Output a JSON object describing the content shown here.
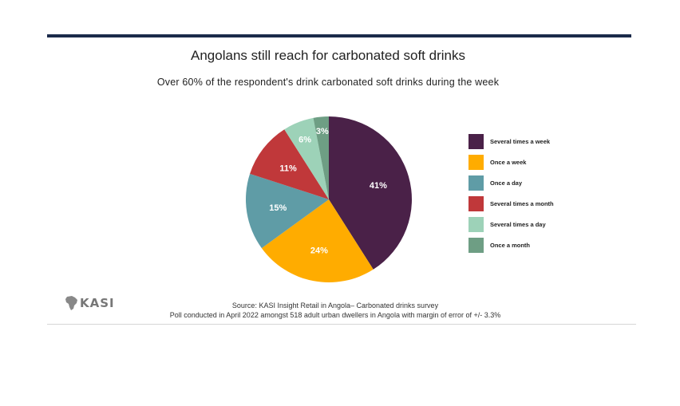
{
  "header": {
    "title": "Angolans still reach for carbonated soft drinks",
    "subtitle": "Over 60% of the respondent's drink carbonated soft drinks during the week"
  },
  "chart_data": {
    "type": "pie",
    "title": "",
    "categories": [
      "Several times a week",
      "Once a week",
      "Once a day",
      "Several times a month",
      "Several times a day",
      "Once a month"
    ],
    "values": [
      41,
      24,
      15,
      11,
      6,
      3
    ],
    "data_labels": [
      "41%",
      "24%",
      "15%",
      "11%",
      "6%",
      "3%"
    ],
    "colors": [
      "#4a2148",
      "#ffac00",
      "#5f9ca6",
      "#c0383a",
      "#9dd2b8",
      "#6e9e84"
    ],
    "legend": "right"
  },
  "footer": {
    "logo_text": "KASI",
    "source_line1": "Source: KASI Insight Retail in Angola– Carbonated drinks survey",
    "source_line2": "Poll conducted in April 2022 amongst 518 adult urban dwellers in Angola with margin of error of +/- 3.3%"
  }
}
